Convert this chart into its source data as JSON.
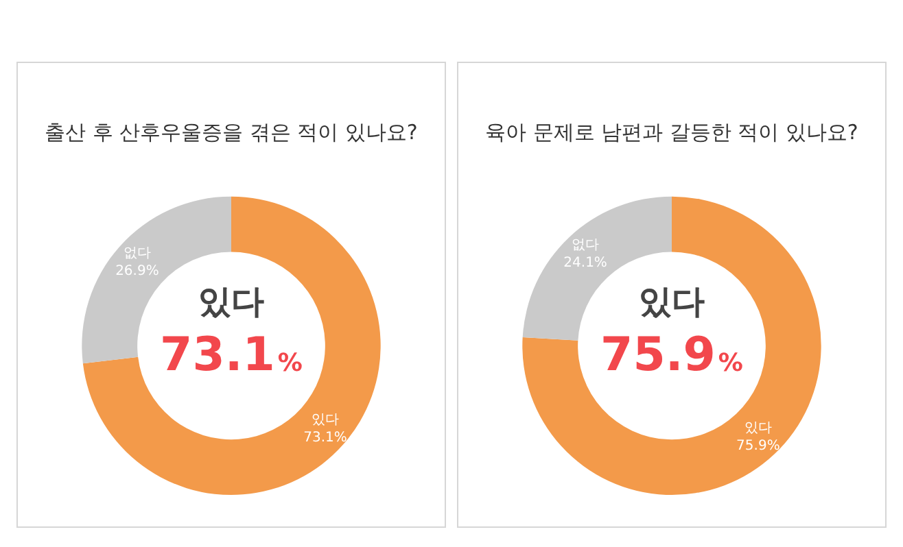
{
  "chart_data": [
    {
      "type": "donut",
      "title": "출산 후 산후우울증을 겪은 적이 있나요?",
      "categories": [
        "있다",
        "없다"
      ],
      "values": [
        73.1,
        26.9
      ],
      "value_labels": [
        "73.1%",
        "26.9%"
      ],
      "colors": [
        "#f39a4a",
        "#cacaca"
      ],
      "annotations": [
        "있다",
        "73.1%"
      ]
    },
    {
      "type": "donut",
      "title": "육아 문제로 남편과 갈등한 적이 있나요?",
      "categories": [
        "있다",
        "없다"
      ],
      "values": [
        75.9,
        24.1
      ],
      "value_labels": [
        "75.9%",
        "24.1%"
      ],
      "colors": [
        "#f39a4a",
        "#cacaca"
      ],
      "annotations": [
        "있다",
        "75.9%"
      ]
    }
  ]
}
